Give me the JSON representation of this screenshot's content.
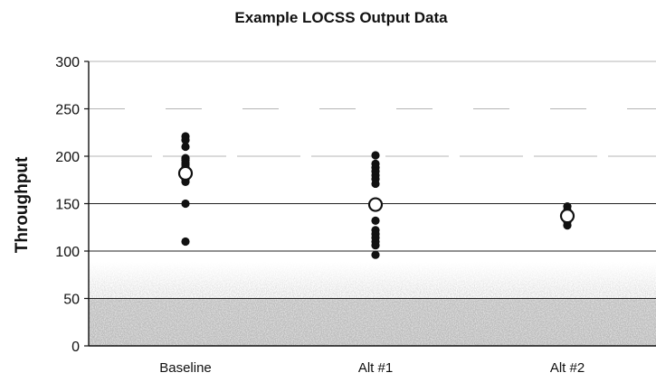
{
  "chart_data": {
    "type": "scatter",
    "title": "Example LOCSS Output Data",
    "xlabel": "",
    "ylabel": "Throughput",
    "ylim": [
      0,
      300
    ],
    "yticks": [
      0,
      50,
      100,
      150,
      200,
      250,
      300
    ],
    "categories": [
      "Baseline",
      "Alt #1",
      "Alt #2"
    ],
    "grid": true,
    "legend": "none",
    "series": [
      {
        "marker": "filled-dot",
        "color": "#111111",
        "points": [
          {
            "category": "Baseline",
            "values": [
              221,
              217,
              210,
              198,
              196,
              193,
              191,
              188,
              186,
              184,
              180,
              177,
              176,
              173,
              150,
              110
            ]
          },
          {
            "category": "Alt #1",
            "values": [
              201,
              192,
              188,
              184,
              180,
              176,
              171,
              152,
              150,
              146,
              132,
              122,
              118,
              114,
              110,
              106,
              96
            ]
          },
          {
            "category": "Alt #2",
            "values": [
              147,
              143,
              140,
              138,
              136,
              134,
              131,
              127
            ]
          }
        ]
      },
      {
        "marker": "open-circle",
        "color": "#ffffff",
        "points": [
          {
            "category": "Baseline",
            "values": [
              182
            ]
          },
          {
            "category": "Alt #1",
            "values": [
              149
            ]
          },
          {
            "category": "Alt #2",
            "values": [
              137
            ]
          }
        ]
      }
    ],
    "colors": {
      "gridline": "#222222",
      "background_noise": "#9a9a9a",
      "axis": "#111111"
    }
  }
}
